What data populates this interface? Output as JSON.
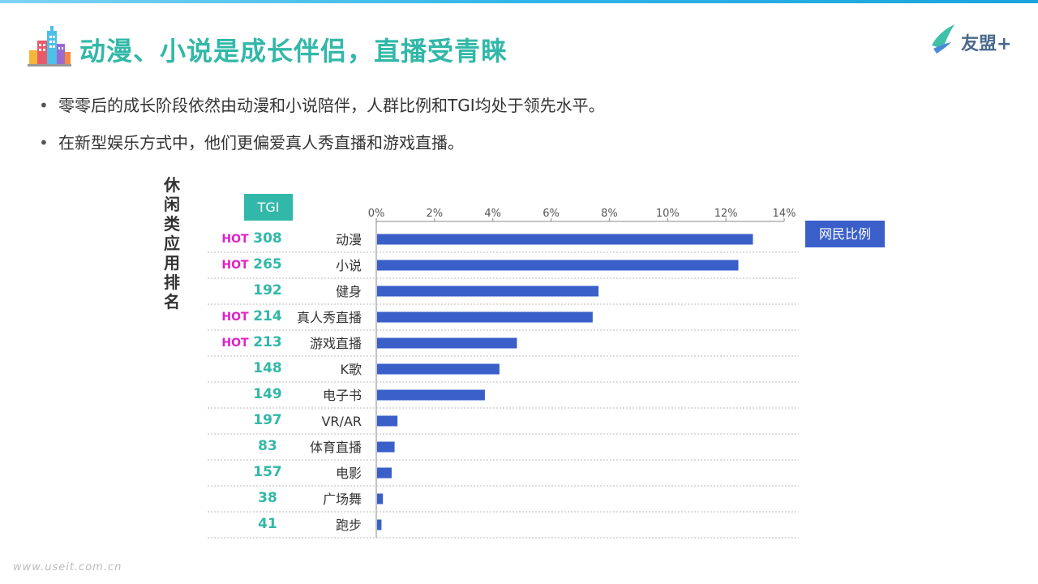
{
  "page": {
    "title": "动漫、小说是成长伴侣，直播受青睐",
    "logo_text": "友盟+",
    "bullets": [
      "零零后的成长阶段依然由动漫和小说陪伴，人群比例和TGI均处于领先水平。",
      "在新型娱乐方式中，他们更偏爱真人秀直播和游戏直播。"
    ],
    "vertical_label": "休闲类应用排名",
    "tgi_header": "TGI",
    "legend_label": "网民比例",
    "watermark": "www.useit.com.cn"
  },
  "colors": {
    "title": "#32b8a8",
    "bar": "#3a5fc8",
    "tgi": "#32b8a8",
    "hot": "#e020c8"
  },
  "chart_data": {
    "type": "bar",
    "orientation": "horizontal",
    "xlim": [
      0,
      14
    ],
    "xticks": [
      "0%",
      "2%",
      "4%",
      "6%",
      "8%",
      "10%",
      "12%",
      "14%"
    ],
    "tick_values": [
      0,
      2,
      4,
      6,
      8,
      10,
      12,
      14
    ],
    "axis_position": "top",
    "categories": [
      "动漫",
      "小说",
      "健身",
      "真人秀直播",
      "游戏直播",
      "K歌",
      "电子书",
      "VR/AR",
      "体育直播",
      "电影",
      "广场舞",
      "跑步"
    ],
    "series": [
      {
        "name": "网民比例",
        "values": [
          12.9,
          12.4,
          7.6,
          7.4,
          4.8,
          4.2,
          3.7,
          0.7,
          0.6,
          0.5,
          0.2,
          0.15
        ]
      }
    ],
    "tgi": [
      308,
      265,
      192,
      214,
      213,
      148,
      149,
      197,
      83,
      157,
      38,
      41
    ],
    "hot": [
      true,
      true,
      false,
      true,
      true,
      false,
      false,
      false,
      false,
      false,
      false,
      false
    ],
    "hot_label": "HOT"
  }
}
